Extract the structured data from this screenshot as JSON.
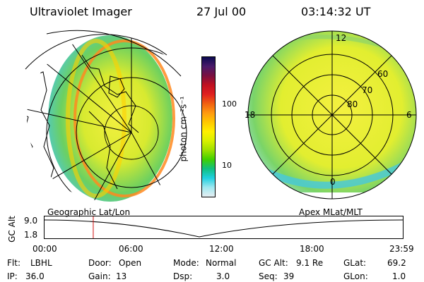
{
  "header": {
    "title": "Ultraviolet Imager",
    "date": "27 Jul 00",
    "time": "03:14:32 UT"
  },
  "colorbar": {
    "label": "photon cm⁻²s⁻¹",
    "scale": "log",
    "ticks": [
      "100",
      "10"
    ],
    "colors": [
      "#0a0a50",
      "#4a1a6a",
      "#7a1040",
      "#c01020",
      "#e02020",
      "#f06010",
      "#ff9a10",
      "#ffc800",
      "#fff000",
      "#d8f000",
      "#9ee000",
      "#40d000",
      "#10c080",
      "#20d0e0",
      "#a0e8f0",
      "#e6eef2"
    ]
  },
  "polar_plot": {
    "mlt_labels": [
      "12",
      "18",
      "6",
      "0"
    ],
    "lat_labels": [
      "60",
      "70",
      "80"
    ]
  },
  "map_labels": {
    "left": "Geographic Lat/Lon",
    "right": "Apex MLat/MLT"
  },
  "timeline": {
    "ylabel": "GC Alt",
    "y_ticks": [
      "9.0",
      "1.8"
    ],
    "x_ticks": [
      "00:00",
      "06:00",
      "12:00",
      "18:00",
      "23:59"
    ],
    "current_time_fraction": 0.136
  },
  "status": {
    "filter_label": "Flt:",
    "filter": "LBHL",
    "door_label": "Door:",
    "door": "Open",
    "mode_label": "Mode:",
    "mode": "Normal",
    "gcalt_label": "GC Alt:",
    "gcalt": "9.1 Re",
    "glat_label": "GLat:",
    "glat": "69.2",
    "ip_label": "IP:",
    "ip": "36.0",
    "gain_label": "Gain:",
    "gain": "13",
    "dsp_label": "Dsp:",
    "dsp": "3.0",
    "seq_label": "Seq:",
    "seq": "39",
    "glon_label": "GLon:",
    "glon": "1.0"
  }
}
